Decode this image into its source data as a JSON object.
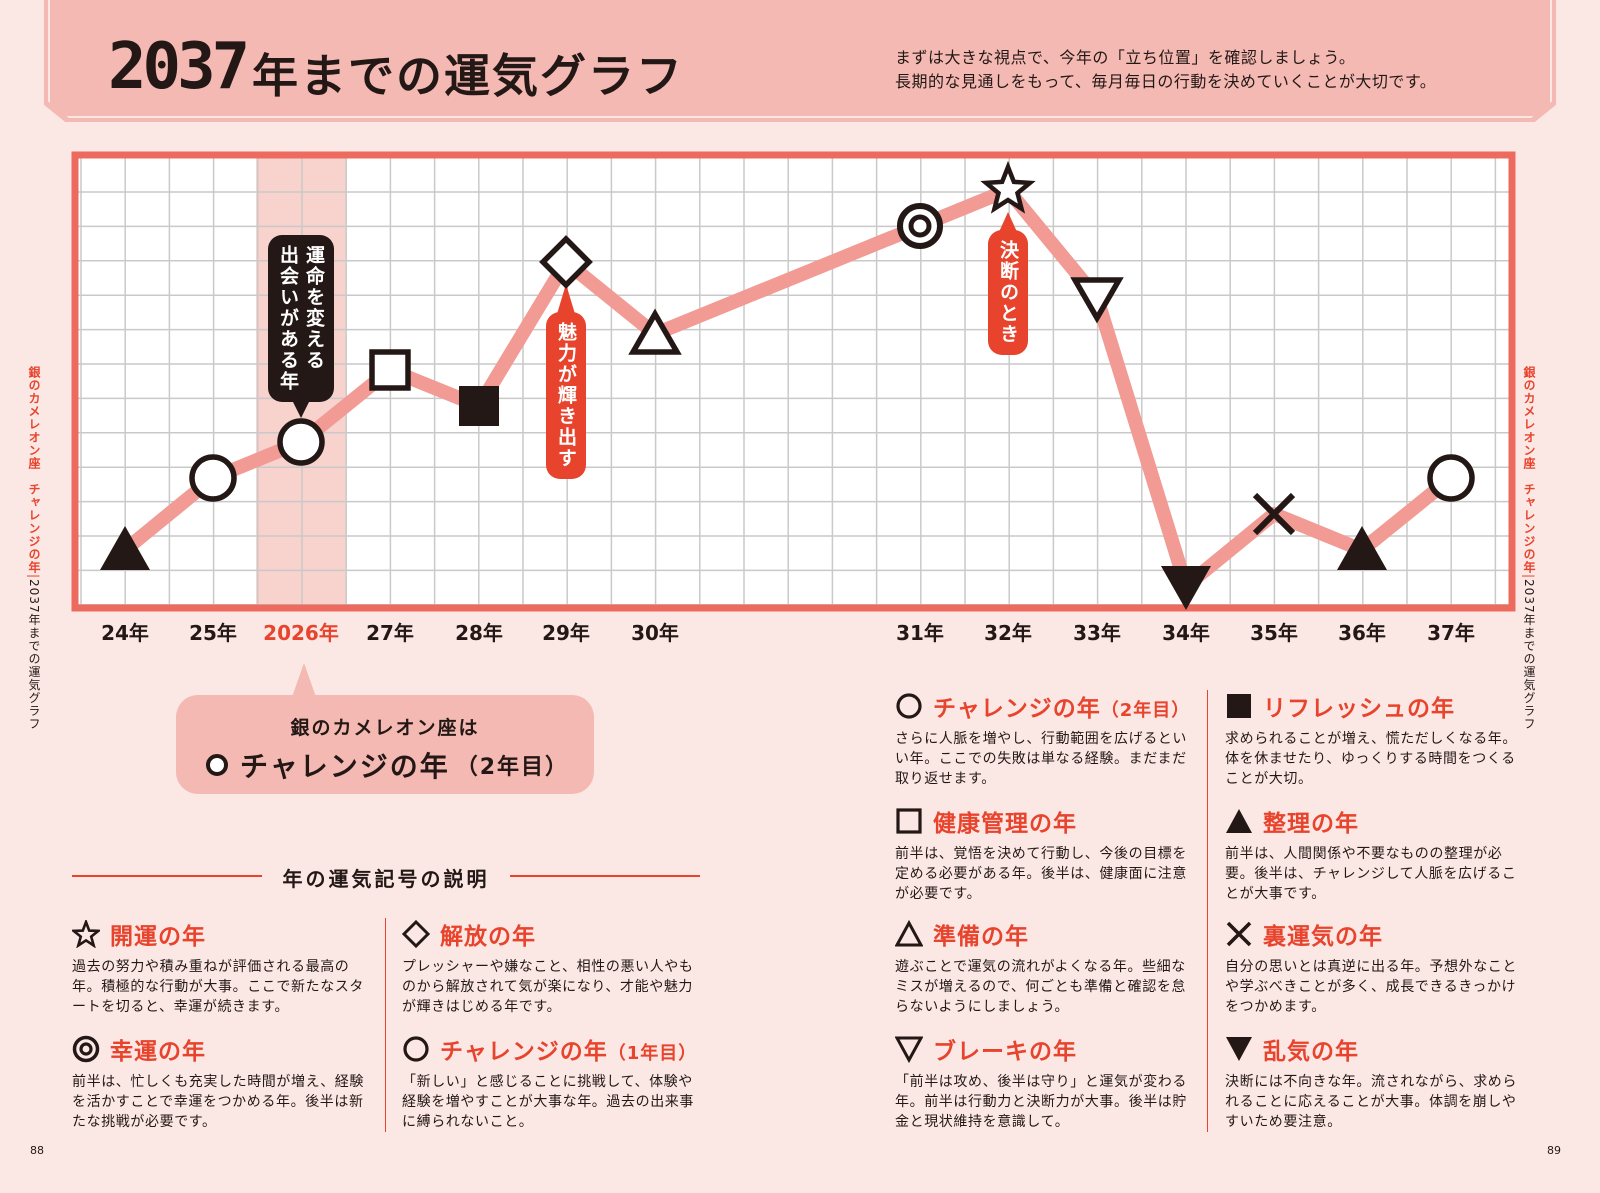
{
  "header": {
    "title_year": "2037",
    "title_rest": "年までの運気グラフ",
    "intro_line1": "まずは大きな視点で、今年の「立ち位置」を確認しましょう。",
    "intro_line2": "長期的な見通しをもって、毎月毎日の行動を決めていくことが大切です。"
  },
  "side": {
    "left_red": "銀のカメレオン座　チャレンジの年",
    "left_bar": "|",
    "left_black": "2037年までの運気グラフ",
    "right_red": "銀のカメレオン座　チャレンジの年",
    "right_bar": "|",
    "right_black": "2037年までの運気グラフ"
  },
  "page_numbers": {
    "left": "88",
    "right": "89"
  },
  "chart_data": {
    "type": "line",
    "categories": [
      "24年",
      "25年",
      "2026年",
      "27年",
      "28年",
      "29年",
      "30年",
      "31年",
      "32年",
      "33年",
      "34年",
      "35年",
      "36年",
      "37年"
    ],
    "highlight_category": "2026年",
    "series": [
      {
        "values": [
          2.0,
          4.0,
          5.0,
          7.0,
          6.0,
          10.0,
          8.0,
          11.0,
          12.0,
          9.0,
          1.0,
          3.0,
          2.0,
          4.0
        ],
        "symbols": [
          "triangle-filled",
          "circle",
          "circle",
          "square",
          "square-filled",
          "diamond",
          "triangle",
          "double-circle",
          "star",
          "triangle-down",
          "triangle-down-filled",
          "cross",
          "triangle-filled",
          "circle"
        ]
      }
    ],
    "ylim": [
      0,
      13
    ],
    "grid": true,
    "annotations": [
      {
        "category": "2026年",
        "text": [
          "運命を変える",
          "出会いがある年"
        ],
        "style": "dark"
      },
      {
        "category": "29年",
        "text": [
          "魅力が輝き出す"
        ],
        "style": "red"
      },
      {
        "category": "32年",
        "text": [
          "決断のとき"
        ],
        "style": "red"
      }
    ],
    "colors": {
      "line": "#f29a94",
      "highlight": "#f8d2cd",
      "frame": "#ec6a5e",
      "grid": "#c9c9c9",
      "dark_label": "#231815",
      "red_label": "#e8432c"
    }
  },
  "callout": {
    "line1": "銀のカメレオン座は",
    "line2_main": "チャレンジの年",
    "line2_sub": "（2年目）"
  },
  "legend": {
    "heading": "年の運気記号の説明",
    "items": [
      {
        "icon": "star-icon",
        "title": "開運の年",
        "title_sub": "",
        "desc": "過去の努力や積み重ねが評価される最高の年。積極的な行動が大事。ここで新たなスタートを切ると、幸運が続きます。"
      },
      {
        "icon": "double-circle-icon",
        "title": "幸運の年",
        "title_sub": "",
        "desc": "前半は、忙しくも充実した時間が増え、経験を活かすことで幸運をつかめる年。後半は新たな挑戦が必要です。"
      },
      {
        "icon": "diamond-icon",
        "title": "解放の年",
        "title_sub": "",
        "desc": "プレッシャーや嫌なこと、相性の悪い人やものから解放されて気が楽になり、才能や魅力が輝きはじめる年です。"
      },
      {
        "icon": "circle-icon",
        "title": "チャレンジの年",
        "title_sub": "（1年目）",
        "desc": "「新しい」と感じることに挑戦して、体験や経験を増やすことが大事な年。過去の出来事に縛られないこと。"
      },
      {
        "icon": "circle-icon",
        "title": "チャレンジの年",
        "title_sub": "（2年目）",
        "desc": "さらに人脈を増やし、行動範囲を広げるといい年。ここでの失敗は単なる経験。まだまだ取り返せます。"
      },
      {
        "icon": "square-icon",
        "title": "健康管理の年",
        "title_sub": "",
        "desc": "前半は、覚悟を決めて行動し、今後の目標を定める必要がある年。後半は、健康面に注意が必要です。"
      },
      {
        "icon": "triangle-icon",
        "title": "準備の年",
        "title_sub": "",
        "desc": "遊ぶことで運気の流れがよくなる年。些細なミスが増えるので、何ごとも準備と確認を怠らないようにしましょう。"
      },
      {
        "icon": "triangle-down-icon",
        "title": "ブレーキの年",
        "title_sub": "",
        "desc": "「前半は攻め、後半は守り」と運気が変わる年。前半は行動力と決断力が大事。後半は貯金と現状維持を意識して。"
      },
      {
        "icon": "filled-square-icon",
        "title": "リフレッシュの年",
        "title_sub": "",
        "desc": "求められることが増え、慌ただしくなる年。体を休ませたり、ゆっくりする時間をつくることが大切。"
      },
      {
        "icon": "filled-triangle-icon",
        "title": "整理の年",
        "title_sub": "",
        "desc": "前半は、人間関係や不要なものの整理が必要。後半は、チャレンジして人脈を広げることが大事です。"
      },
      {
        "icon": "cross-icon",
        "title": "裏運気の年",
        "title_sub": "",
        "desc": "自分の思いとは真逆に出る年。予想外なことや学ぶべきことが多く、成長できるきっかけをつかめます。"
      },
      {
        "icon": "filled-triangle-down-icon",
        "title": "乱気の年",
        "title_sub": "",
        "desc": "決断には不向きな年。流されながら、求められることに応えることが大事。体調を崩しやすいため要注意。"
      }
    ]
  }
}
